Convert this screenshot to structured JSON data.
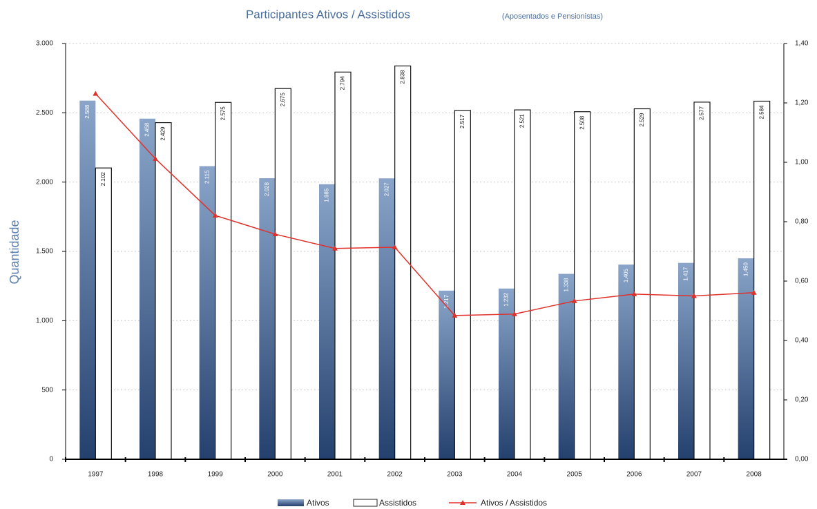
{
  "chart_data": {
    "type": "bar",
    "title": "Participantes Ativos / Assistidos",
    "subtitle": "(Aposentados e Pensionistas)",
    "y_label": "Quantidade",
    "categories": [
      "1997",
      "1998",
      "1999",
      "2000",
      "2001",
      "2002",
      "2003",
      "2004",
      "2005",
      "2006",
      "2007",
      "2008"
    ],
    "series": [
      {
        "name": "Ativos",
        "type": "bar",
        "color": "#3f5f8f",
        "values": [
          2588,
          2458,
          2115,
          2028,
          1985,
          2027,
          1217,
          1232,
          1338,
          1405,
          1417,
          1450
        ],
        "value_labels": [
          "2.588",
          "2.458",
          "2.115",
          "2.028",
          "1.985",
          "2.027",
          "1.217",
          "1.232",
          "1.338",
          "1.405",
          "1.417",
          "1.450"
        ]
      },
      {
        "name": "Assistidos",
        "type": "bar",
        "color": "#ffffff",
        "values": [
          2102,
          2429,
          2575,
          2675,
          2794,
          2838,
          2517,
          2521,
          2508,
          2529,
          2577,
          2584
        ],
        "value_labels": [
          "2.102",
          "2.429",
          "2.575",
          "2.675",
          "2.794",
          "2.838",
          "2.517",
          "2.521",
          "2.508",
          "2.529",
          "2.577",
          "2.584"
        ]
      },
      {
        "name": "Ativos / Assistidos",
        "type": "line",
        "axis": "y2",
        "color": "#e0302a",
        "values": [
          1.231,
          1.012,
          0.821,
          0.758,
          0.71,
          0.714,
          0.484,
          0.489,
          0.533,
          0.556,
          0.55,
          0.561
        ]
      }
    ],
    "ylim": [
      0,
      3000
    ],
    "yticks": [
      {
        "value": 0,
        "label": "0"
      },
      {
        "value": 500,
        "label": "500"
      },
      {
        "value": 1000,
        "label": "1.000"
      },
      {
        "value": 1500,
        "label": "1.500"
      },
      {
        "value": 2000,
        "label": "2.000"
      },
      {
        "value": 2500,
        "label": "2.500"
      },
      {
        "value": 3000,
        "label": "3.000"
      }
    ],
    "y2lim": [
      0,
      1.4
    ],
    "y2ticks": [
      {
        "value": 0,
        "label": "0,00"
      },
      {
        "value": 0.2,
        "label": "0,20"
      },
      {
        "value": 0.4,
        "label": "0,40"
      },
      {
        "value": 0.6,
        "label": "0,60"
      },
      {
        "value": 0.8,
        "label": "0,80"
      },
      {
        "value": 1.0,
        "label": "1,00"
      },
      {
        "value": 1.2,
        "label": "1,20"
      },
      {
        "value": 1.4,
        "label": "1,40"
      }
    ],
    "grid": true
  }
}
